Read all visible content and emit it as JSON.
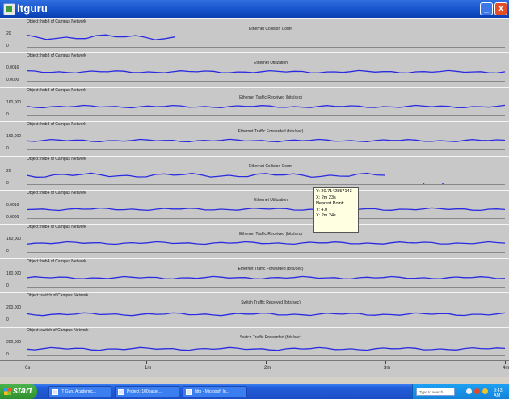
{
  "window": {
    "title": "itguru",
    "minimize_glyph": "_",
    "close_glyph": "X",
    "title_icon": "app-icon"
  },
  "panels": [
    {
      "object": "Object: hub3 of Campus Network",
      "statistic": "Ethernet Collision Count",
      "y_top": "20",
      "y_bottom": "0"
    },
    {
      "object": "Object: hub3 of Campus Network",
      "statistic": "Ethernet Utilization",
      "y_top": "0.0016",
      "y_bottom": "0.0000"
    },
    {
      "object": "Object: hub3 of Campus Network",
      "statistic": "Ethernet Traffic Received (bits/sec)",
      "y_top": "160,000",
      "y_bottom": "0"
    },
    {
      "object": "Object: hub3 of Campus Network",
      "statistic": "Ethernet Traffic Forwarded (bits/sec)",
      "y_top": "160,000",
      "y_bottom": "0"
    },
    {
      "object": "Object: hub4 of Campus Network",
      "statistic": "Ethernet Collision Count",
      "y_top": "20",
      "y_bottom": "0"
    },
    {
      "object": "Object: hub4 of Campus Network",
      "statistic": "Ethernet Utilization",
      "y_top": "0.0016",
      "y_bottom": "0.0000"
    },
    {
      "object": "Object: hub4 of Campus Network",
      "statistic": "Ethernet Traffic Received (bits/sec)",
      "y_top": "160,000",
      "y_bottom": "0"
    },
    {
      "object": "Object: hub4 of Campus Network",
      "statistic": "Ethernet Traffic Forwarded (bits/sec)",
      "y_top": "160,000",
      "y_bottom": "0"
    },
    {
      "object": "Object: switch of Campus Network",
      "statistic": "Switch Traffic Received (bits/sec)",
      "y_top": "200,000",
      "y_bottom": "0"
    },
    {
      "object": "Object: switch of Campus Network",
      "statistic": "Switch Traffic Forwarded (bits/sec)",
      "y_top": "200,000",
      "y_bottom": "0"
    }
  ],
  "tooltip": {
    "line1": "Y: 20.7142857143",
    "line2": "X: 2m 23s",
    "line3": "Nearest Point:",
    "line4": "Y: 4.0",
    "line5": "X: 2m 24s"
  },
  "x_axis": {
    "labels": [
      "0s",
      "1m",
      "2m",
      "3m",
      "4m"
    ]
  },
  "taskbar": {
    "start_label": "start",
    "items": [
      "IT Guru Academic...",
      "Project: 100baset...",
      "http - Microsoft In..."
    ],
    "search_placeholder": "Type to search",
    "clock": "9:43 AM"
  },
  "colors": {
    "trace": "#2a2ae0",
    "plot_bg": "#c8c8c8",
    "title_bar": "#1450c8",
    "taskbar": "#245edb"
  }
}
